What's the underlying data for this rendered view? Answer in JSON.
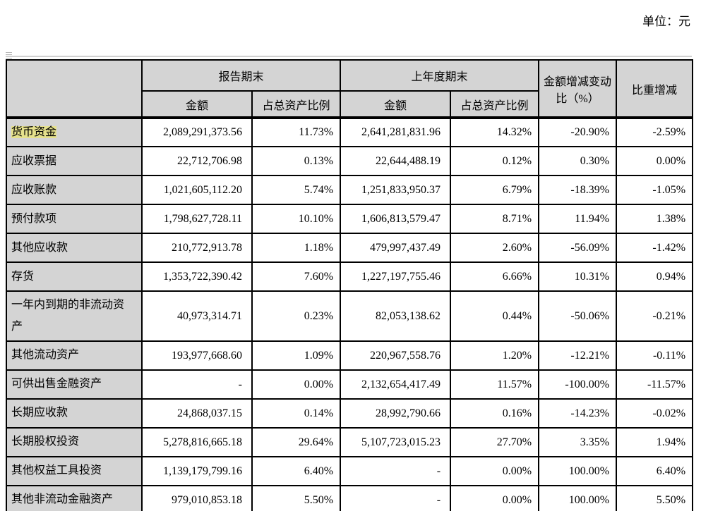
{
  "page": {
    "unit_label": "单位：元"
  },
  "colors": {
    "header_bg": "#d4d4d4",
    "highlight": "#e5e18c",
    "border": "#000000",
    "rule_gray": "#d0d0d0"
  },
  "table": {
    "headers": {
      "report_period": "报告期末",
      "prior_year": "上年度期末",
      "amount": "金额",
      "pct_of_assets": "占总资产比例",
      "amount_change": "金额增减变动比（%）",
      "weight_change": "比重增减"
    },
    "rows": [
      {
        "label": "货币资金",
        "highlight": true,
        "amount_now": "2,089,291,373.56",
        "pct_now": "11.73%",
        "amount_prev": "2,641,281,831.96",
        "pct_prev": "14.32%",
        "amount_change": "-20.90%",
        "weight_change": "-2.59%"
      },
      {
        "label": "应收票据",
        "highlight": false,
        "amount_now": "22,712,706.98",
        "pct_now": "0.13%",
        "amount_prev": "22,644,488.19",
        "pct_prev": "0.12%",
        "amount_change": "0.30%",
        "weight_change": "0.00%"
      },
      {
        "label": "应收账款",
        "highlight": false,
        "amount_now": "1,021,605,112.20",
        "pct_now": "5.74%",
        "amount_prev": "1,251,833,950.37",
        "pct_prev": "6.79%",
        "amount_change": "-18.39%",
        "weight_change": "-1.05%"
      },
      {
        "label": "预付款项",
        "highlight": false,
        "amount_now": "1,798,627,728.11",
        "pct_now": "10.10%",
        "amount_prev": "1,606,813,579.47",
        "pct_prev": "8.71%",
        "amount_change": "11.94%",
        "weight_change": "1.38%"
      },
      {
        "label": "其他应收款",
        "highlight": false,
        "amount_now": "210,772,913.78",
        "pct_now": "1.18%",
        "amount_prev": "479,997,437.49",
        "pct_prev": "2.60%",
        "amount_change": "-56.09%",
        "weight_change": "-1.42%"
      },
      {
        "label": "存货",
        "highlight": false,
        "amount_now": "1,353,722,390.42",
        "pct_now": "7.60%",
        "amount_prev": "1,227,197,755.46",
        "pct_prev": "6.66%",
        "amount_change": "10.31%",
        "weight_change": "0.94%"
      },
      {
        "label": "一年内到期的非流动资产",
        "highlight": false,
        "amount_now": "40,973,314.71",
        "pct_now": "0.23%",
        "amount_prev": "82,053,138.62",
        "pct_prev": "0.44%",
        "amount_change": "-50.06%",
        "weight_change": "-0.21%"
      },
      {
        "label": "其他流动资产",
        "highlight": false,
        "amount_now": "193,977,668.60",
        "pct_now": "1.09%",
        "amount_prev": "220,967,558.76",
        "pct_prev": "1.20%",
        "amount_change": "-12.21%",
        "weight_change": "-0.11%"
      },
      {
        "label": "可供出售金融资产",
        "highlight": false,
        "amount_now": "-",
        "pct_now": "0.00%",
        "amount_prev": "2,132,654,417.49",
        "pct_prev": "11.57%",
        "amount_change": "-100.00%",
        "weight_change": "-11.57%"
      },
      {
        "label": "长期应收款",
        "highlight": false,
        "amount_now": "24,868,037.15",
        "pct_now": "0.14%",
        "amount_prev": "28,992,790.66",
        "pct_prev": "0.16%",
        "amount_change": "-14.23%",
        "weight_change": "-0.02%"
      },
      {
        "label": "长期股权投资",
        "highlight": false,
        "amount_now": "5,278,816,665.18",
        "pct_now": "29.64%",
        "amount_prev": "5,107,723,015.23",
        "pct_prev": "27.70%",
        "amount_change": "3.35%",
        "weight_change": "1.94%"
      },
      {
        "label": "其他权益工具投资",
        "highlight": false,
        "amount_now": "1,139,179,799.16",
        "pct_now": "6.40%",
        "amount_prev": "-",
        "pct_prev": "0.00%",
        "amount_change": "100.00%",
        "weight_change": "6.40%"
      },
      {
        "label": "其他非流动金融资产",
        "highlight": false,
        "amount_now": "979,010,853.18",
        "pct_now": "5.50%",
        "amount_prev": "-",
        "pct_prev": "0.00%",
        "amount_change": "100.00%",
        "weight_change": "5.50%"
      }
    ]
  }
}
